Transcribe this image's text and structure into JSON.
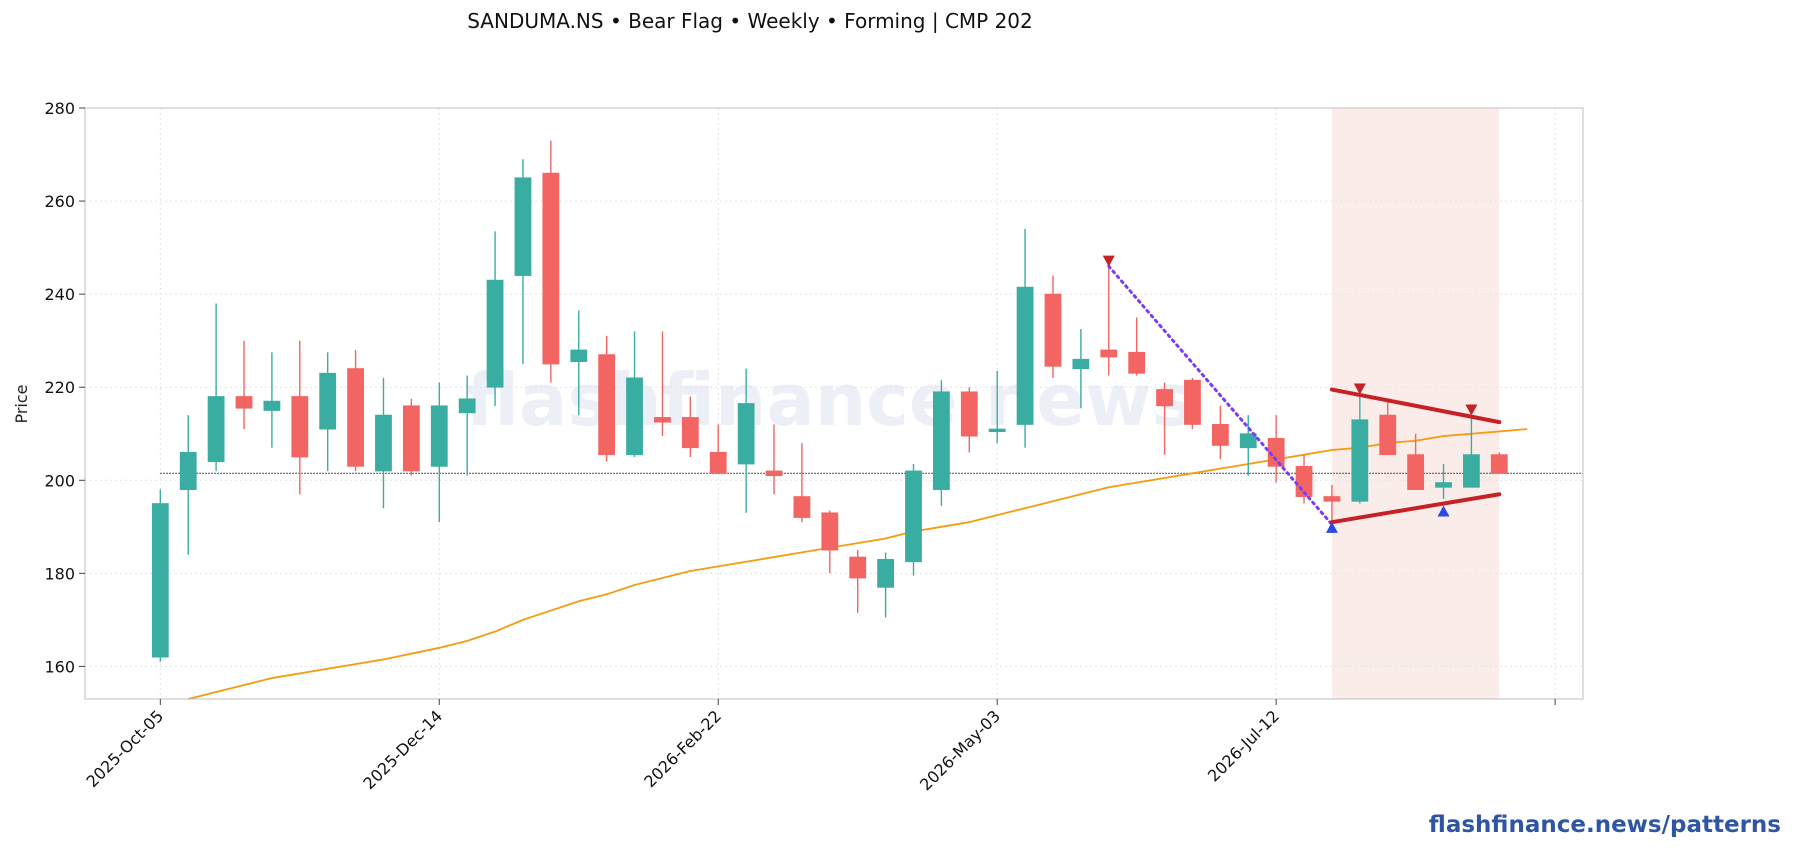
{
  "title": "SANDUMA.NS  •  Bear Flag  •  Weekly  •  Forming  |  CMP 202",
  "watermark": "flashfinance.news",
  "footer": "flashfinance.news/patterns",
  "colors": {
    "up": "#3aada3",
    "down": "#f26563",
    "ma": "#f59b12",
    "pattern_line": "#c62226",
    "pole_line": "#7a3cf5",
    "peak_marker": "#c62226",
    "trough_marker": "#2a4be0",
    "zone": "#f9e7e4",
    "grid": "#e3e3e3",
    "ref_line": "#333333"
  },
  "chart_data": {
    "type": "candlestick",
    "ylabel": "Price",
    "ylim": [
      153,
      280
    ],
    "yticks": [
      160,
      180,
      200,
      220,
      240,
      260,
      280
    ],
    "xlim": [
      -2.7,
      51
    ],
    "xticks": [
      {
        "x": 0,
        "label": "2025-Oct-05"
      },
      {
        "x": 10,
        "label": "2025-Dec-14"
      },
      {
        "x": 20,
        "label": "2026-Feb-22"
      },
      {
        "x": 30,
        "label": "2026-May-03"
      },
      {
        "x": 40,
        "label": "2026-Jul-12"
      },
      {
        "x": 50,
        "label": ""
      }
    ],
    "grid": true,
    "candles": [
      {
        "date": "2025-Oct-05",
        "o": 162,
        "h": 198,
        "l": 161,
        "c": 195
      },
      {
        "date": "2025-Oct-12",
        "o": 198,
        "h": 214,
        "l": 184,
        "c": 206
      },
      {
        "date": "2025-Oct-19",
        "o": 204,
        "h": 238,
        "l": 202,
        "c": 218
      },
      {
        "date": "2025-Oct-26",
        "o": 218,
        "h": 230,
        "l": 211,
        "c": 215.5
      },
      {
        "date": "2025-Nov-02",
        "o": 215,
        "h": 227.5,
        "l": 207,
        "c": 217
      },
      {
        "date": "2025-Nov-09",
        "o": 218,
        "h": 230,
        "l": 197,
        "c": 205
      },
      {
        "date": "2025-Nov-16",
        "o": 211,
        "h": 227.5,
        "l": 202,
        "c": 223
      },
      {
        "date": "2025-Nov-23",
        "o": 224,
        "h": 228,
        "l": 202,
        "c": 203
      },
      {
        "date": "2025-Nov-30",
        "o": 202,
        "h": 222,
        "l": 194,
        "c": 214
      },
      {
        "date": "2025-Dec-07",
        "o": 216,
        "h": 217.5,
        "l": 201,
        "c": 202
      },
      {
        "date": "2025-Dec-14",
        "o": 203,
        "h": 221,
        "l": 191,
        "c": 216
      },
      {
        "date": "2025-Dec-21",
        "o": 214.5,
        "h": 222.5,
        "l": 201,
        "c": 217.5
      },
      {
        "date": "2025-Dec-28",
        "o": 220,
        "h": 253.5,
        "l": 216,
        "c": 243
      },
      {
        "date": "2026-Jan-04",
        "o": 244,
        "h": 269,
        "l": 225,
        "c": 265
      },
      {
        "date": "2026-Jan-11",
        "o": 266,
        "h": 273,
        "l": 221,
        "c": 225
      },
      {
        "date": "2026-Jan-18",
        "o": 225.5,
        "h": 236.5,
        "l": 214,
        "c": 228
      },
      {
        "date": "2026-Jan-25",
        "o": 227,
        "h": 231,
        "l": 204,
        "c": 205.5
      },
      {
        "date": "2026-Feb-01",
        "o": 205.5,
        "h": 232,
        "l": 205,
        "c": 222
      },
      {
        "date": "2026-Feb-08",
        "o": 213.5,
        "h": 232,
        "l": 209.5,
        "c": 212.5
      },
      {
        "date": "2026-Feb-15",
        "o": 213.5,
        "h": 218,
        "l": 205,
        "c": 207
      },
      {
        "date": "2026-Feb-22",
        "o": 206,
        "h": 212,
        "l": 201.5,
        "c": 201.5
      },
      {
        "date": "2026-Mar-01",
        "o": 203.5,
        "h": 224,
        "l": 193,
        "c": 216.5
      },
      {
        "date": "2026-Mar-08",
        "o": 202,
        "h": 212,
        "l": 197,
        "c": 201
      },
      {
        "date": "2026-Mar-15",
        "o": 196.5,
        "h": 208,
        "l": 191,
        "c": 192
      },
      {
        "date": "2026-Mar-22",
        "o": 193,
        "h": 193.5,
        "l": 180,
        "c": 185
      },
      {
        "date": "2026-Mar-29",
        "o": 183.5,
        "h": 185,
        "l": 171.5,
        "c": 179
      },
      {
        "date": "2026-Apr-05",
        "o": 177,
        "h": 184.5,
        "l": 170.5,
        "c": 183
      },
      {
        "date": "2026-Apr-12",
        "o": 182.5,
        "h": 203.5,
        "l": 179.5,
        "c": 202
      },
      {
        "date": "2026-Apr-19",
        "o": 198,
        "h": 221.5,
        "l": 194.5,
        "c": 219
      },
      {
        "date": "2026-Apr-26",
        "o": 219,
        "h": 220,
        "l": 206,
        "c": 209.5
      },
      {
        "date": "2026-May-03",
        "o": 210.5,
        "h": 223.5,
        "l": 208,
        "c": 211
      },
      {
        "date": "2026-May-10",
        "o": 212,
        "h": 254,
        "l": 207,
        "c": 241.5
      },
      {
        "date": "2026-May-17",
        "o": 240,
        "h": 244,
        "l": 222,
        "c": 224.5
      },
      {
        "date": "2026-May-24",
        "o": 224,
        "h": 232.5,
        "l": 215.5,
        "c": 226
      },
      {
        "date": "2026-May-31",
        "o": 228,
        "h": 247,
        "l": 222.5,
        "c": 226.5
      },
      {
        "date": "2026-Jun-07",
        "o": 227.5,
        "h": 235,
        "l": 222.5,
        "c": 223
      },
      {
        "date": "2026-Jun-14",
        "o": 219.5,
        "h": 221,
        "l": 205.5,
        "c": 216
      },
      {
        "date": "2026-Jun-21",
        "o": 221.5,
        "h": 222,
        "l": 211,
        "c": 212
      },
      {
        "date": "2026-Jun-28",
        "o": 212,
        "h": 216,
        "l": 204.5,
        "c": 207.5
      },
      {
        "date": "2026-Jul-05",
        "o": 207,
        "h": 214,
        "l": 201,
        "c": 210
      },
      {
        "date": "2026-Jul-12",
        "o": 209,
        "h": 214,
        "l": 199.5,
        "c": 203
      },
      {
        "date": "2026-Jul-19",
        "o": 203,
        "h": 205.5,
        "l": 195,
        "c": 196.5
      },
      {
        "date": "2026-Jul-26",
        "o": 196.5,
        "h": 199,
        "l": 191,
        "c": 195.5
      },
      {
        "date": "2026-Aug-02",
        "o": 195.5,
        "h": 219,
        "l": 195,
        "c": 213
      },
      {
        "date": "2026-Aug-09",
        "o": 214,
        "h": 217,
        "l": 205.5,
        "c": 205.5
      },
      {
        "date": "2026-Aug-16",
        "o": 205.5,
        "h": 210,
        "l": 198,
        "c": 198
      },
      {
        "date": "2026-Aug-23",
        "o": 198.5,
        "h": 203.5,
        "l": 196,
        "c": 199.5
      },
      {
        "date": "2026-Aug-30",
        "o": 198.5,
        "h": 213.5,
        "l": 198.5,
        "c": 205.5
      },
      {
        "date": "2026-Sep-06",
        "o": 205.5,
        "h": 206,
        "l": 201.5,
        "c": 201.5
      }
    ],
    "moving_average": {
      "x": [
        1,
        2,
        4,
        6,
        8,
        10,
        11,
        12,
        13,
        14,
        15,
        16,
        17,
        18,
        19,
        20,
        21,
        22,
        23,
        24,
        25,
        26,
        27,
        28,
        29,
        30,
        31,
        32,
        33,
        34,
        35,
        36,
        37,
        38,
        39,
        40,
        41,
        42,
        43,
        44,
        45,
        46,
        47,
        48,
        49
      ],
      "y": [
        153,
        154.5,
        157.5,
        159.5,
        161.5,
        164,
        165.5,
        167.5,
        170,
        172,
        174,
        175.5,
        177.5,
        179,
        180.5,
        181.5,
        182.5,
        183.5,
        184.5,
        185.5,
        186.5,
        187.5,
        189,
        190,
        191,
        192.5,
        194,
        195.5,
        197,
        198.5,
        199.5,
        200.5,
        201.5,
        202.5,
        203.5,
        204.5,
        205.5,
        206.5,
        207,
        208,
        208.5,
        209.5,
        210,
        210.5,
        211
      ]
    },
    "reference_price": 201.5,
    "reference_start_x": 0,
    "flagpole": {
      "x1": 34,
      "y1": 246,
      "x2": 42,
      "y2": 190.5
    },
    "flag_upper": {
      "x1": 42,
      "y1": 219.5,
      "x2": 48,
      "y2": 212.5
    },
    "flag_lower": {
      "x1": 42,
      "y1": 191,
      "x2": 48,
      "y2": 197
    },
    "flag_zone": {
      "x1": 42,
      "x2": 48
    },
    "peak_markers": [
      {
        "x": 34,
        "y": 247
      },
      {
        "x": 43,
        "y": 219.5
      },
      {
        "x": 47,
        "y": 215
      }
    ],
    "trough_markers": [
      {
        "x": 42,
        "y": 190
      },
      {
        "x": 46,
        "y": 193.5
      }
    ]
  }
}
